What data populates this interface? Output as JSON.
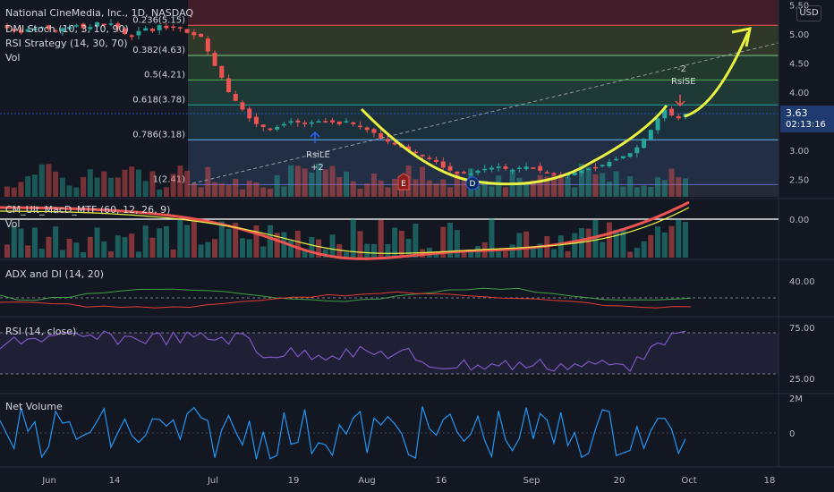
{
  "header": {
    "title": "National CineMedia, Inc., 1D, NASDAQ",
    "indicator_1": "DMI Stoch (10, 3, 10, 90)",
    "indicator_2": "RSI Strategy (14, 30, 70)",
    "indicator_3": "Vol",
    "currency": "USD"
  },
  "last_price": {
    "value": "3.63",
    "countdown": "02:13:16"
  },
  "panes": {
    "macd_label": "CM_Ult_MacD_MTF (60, 12, 26, 9)",
    "macd_vol_label": "Vol",
    "adx_label": "ADX and DI (14, 20)",
    "rsi_label": "RSI (14, close)",
    "netvol_label": "Net Volume"
  },
  "fib_levels": [
    {
      "label": "0.236(5.15)",
      "price": 5.15
    },
    {
      "label": "0.382(4.63)",
      "price": 4.63
    },
    {
      "label": "0.5(4.21)",
      "price": 4.21
    },
    {
      "label": "0.618(3.78)",
      "price": 3.78
    },
    {
      "label": "0.786(3.18)",
      "price": 3.18
    },
    {
      "label": "1(2.41)",
      "price": 2.41
    }
  ],
  "signals": {
    "long_label": "RsiLE",
    "long_qty": "+2",
    "short_label": "RsiSE",
    "short_qty": "-2",
    "earnings_marker": "E",
    "dividend_marker": "D"
  },
  "chart_data": [
    {
      "type": "candlestick",
      "title": "National CineMedia, Inc., 1D, NASDAQ",
      "y_axis_ticks": [
        2.5,
        3.0,
        3.5,
        4.0,
        4.5,
        5.0,
        5.5
      ],
      "x_axis_ticks": [
        "Jun",
        "14",
        "Jul",
        "19",
        "Aug",
        "16",
        "Sep",
        "20",
        "Oct",
        "18"
      ],
      "close": [
        5.1,
        5.05,
        5.02,
        5.08,
        5.1,
        5.12,
        5.08,
        5.06,
        5.1,
        5.12,
        5.15,
        5.1,
        5.12,
        5.2,
        5.15,
        5.18,
        5.1,
        5.0,
        4.95,
        5.05,
        5.1,
        5.05,
        5.15,
        5.1,
        5.12,
        5.1,
        5.02,
        4.98,
        4.95,
        4.7,
        4.45,
        4.25,
        4.0,
        3.85,
        3.7,
        3.55,
        3.45,
        3.4,
        3.35,
        3.4,
        3.45,
        3.5,
        3.48,
        3.45,
        3.48,
        3.5,
        3.5,
        3.48,
        3.45,
        3.5,
        3.45,
        3.4,
        3.35,
        3.3,
        3.2,
        3.15,
        3.1,
        3.05,
        3.0,
        2.95,
        2.9,
        2.85,
        2.8,
        2.7,
        2.65,
        2.6,
        2.62,
        2.6,
        2.65,
        2.68,
        2.7,
        2.72,
        2.68,
        2.66,
        2.7,
        2.72,
        2.7,
        2.65,
        2.62,
        2.6,
        2.58,
        2.6,
        2.62,
        2.65,
        2.68,
        2.7,
        2.75,
        2.8,
        2.85,
        2.9,
        2.95,
        3.05,
        3.2,
        3.35,
        3.55,
        3.7,
        3.6,
        3.55,
        3.63
      ],
      "last": 3.63,
      "projection": {
        "from": 3.63,
        "to": 5.06
      }
    },
    {
      "type": "bar",
      "title": "Vol",
      "note": "volume histogram in price pane"
    },
    {
      "type": "bar",
      "title": "CM_Ult_MacD_MTF (60, 12, 26, 9)",
      "y_axis_ticks": [
        0.0
      ]
    },
    {
      "type": "line",
      "title": "ADX and DI (14, 20)",
      "y_axis_ticks": [
        40.0
      ]
    },
    {
      "type": "line",
      "title": "RSI (14, close)",
      "y_axis_ticks": [
        25.0,
        75.0
      ]
    },
    {
      "type": "line",
      "title": "Net Volume",
      "y_axis_ticks": [
        "0",
        "2M"
      ]
    }
  ],
  "colors": {
    "up": "#26a69a",
    "down": "#ef5350",
    "curve": "#e8f040",
    "blue": "#2962ff",
    "rsi": "#7e57c2"
  }
}
